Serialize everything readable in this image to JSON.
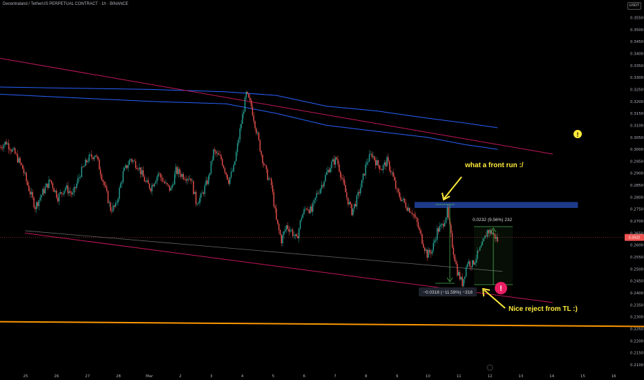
{
  "header": {
    "title": "Decentraland / TetherUS PERPETUAL CONTRACT · 1h · BINANCE"
  },
  "currency_button": "USDT",
  "price_label": "0.2632",
  "annotations": {
    "front_run": "what a front run :/",
    "reject": "Nice reject from TL :)",
    "range_up": "0.0232 (9.56%) 232",
    "range_down": "−0.0318 (−11.59%) −318"
  },
  "colors": {
    "up": "#26a69a",
    "down": "#ef5350",
    "trendline": "#c2185b",
    "support": "#ff9800",
    "ma": "#2962ff",
    "zone": "#1e3a8a",
    "annotation": "#ffeb3b",
    "range": "#4caf50"
  },
  "chart_data": {
    "type": "candlestick",
    "title": "Decentraland / TetherUS PERPETUAL CONTRACT · 1h · BINANCE",
    "y_range": [
      0.21,
      0.356
    ],
    "y_ticks": [
      "0.3550",
      "0.3500",
      "0.3450",
      "0.3400",
      "0.3350",
      "0.3300",
      "0.3250",
      "0.3200",
      "0.3150",
      "0.3100",
      "0.3050",
      "0.3000",
      "0.2950",
      "0.2900",
      "0.2850",
      "0.2800",
      "0.2750",
      "0.2700",
      "0.2650",
      "0.2600",
      "0.2550",
      "0.2500",
      "0.2450",
      "0.2400",
      "0.2350",
      "0.2300",
      "0.2250",
      "0.2200",
      "0.2150",
      "0.2100"
    ],
    "x_ticks": [
      "25",
      "26",
      "27",
      "28",
      "Mar",
      "2",
      "3",
      "4",
      "5",
      "6",
      "7",
      "8",
      "9",
      "10",
      "11",
      "12",
      "13",
      "14",
      "15",
      "16"
    ],
    "price_path": [
      [
        0,
        0.301
      ],
      [
        5,
        0.303
      ],
      [
        12,
        0.298
      ],
      [
        18,
        0.292
      ],
      [
        22,
        0.285
      ],
      [
        28,
        0.276
      ],
      [
        34,
        0.282
      ],
      [
        40,
        0.287
      ],
      [
        46,
        0.28
      ],
      [
        52,
        0.284
      ],
      [
        58,
        0.281
      ],
      [
        64,
        0.29
      ],
      [
        70,
        0.296
      ],
      [
        76,
        0.298
      ],
      [
        82,
        0.287
      ],
      [
        88,
        0.275
      ],
      [
        92,
        0.276
      ],
      [
        98,
        0.29
      ],
      [
        104,
        0.296
      ],
      [
        110,
        0.293
      ],
      [
        116,
        0.286
      ],
      [
        120,
        0.284
      ],
      [
        126,
        0.29
      ],
      [
        132,
        0.285
      ],
      [
        136,
        0.283
      ],
      [
        140,
        0.291
      ],
      [
        146,
        0.289
      ],
      [
        152,
        0.288
      ],
      [
        156,
        0.278
      ],
      [
        160,
        0.28
      ],
      [
        166,
        0.288
      ],
      [
        170,
        0.299
      ],
      [
        176,
        0.296
      ],
      [
        182,
        0.287
      ],
      [
        186,
        0.292
      ],
      [
        192,
        0.311
      ],
      [
        196,
        0.323
      ],
      [
        200,
        0.318
      ],
      [
        204,
        0.308
      ],
      [
        208,
        0.298
      ],
      [
        212,
        0.29
      ],
      [
        216,
        0.285
      ],
      [
        220,
        0.27
      ],
      [
        224,
        0.262
      ],
      [
        228,
        0.268
      ],
      [
        232,
        0.266
      ],
      [
        236,
        0.262
      ],
      [
        240,
        0.272
      ],
      [
        244,
        0.276
      ],
      [
        248,
        0.274
      ],
      [
        252,
        0.281
      ],
      [
        256,
        0.285
      ],
      [
        260,
        0.29
      ],
      [
        264,
        0.294
      ],
      [
        268,
        0.296
      ],
      [
        272,
        0.288
      ],
      [
        276,
        0.28
      ],
      [
        280,
        0.274
      ],
      [
        284,
        0.279
      ],
      [
        288,
        0.286
      ],
      [
        292,
        0.295
      ],
      [
        296,
        0.298
      ],
      [
        300,
        0.294
      ],
      [
        304,
        0.292
      ],
      [
        308,
        0.295
      ],
      [
        312,
        0.29
      ],
      [
        316,
        0.282
      ],
      [
        320,
        0.279
      ],
      [
        324,
        0.276
      ],
      [
        328,
        0.274
      ],
      [
        332,
        0.269
      ],
      [
        336,
        0.262
      ],
      [
        340,
        0.256
      ],
      [
        344,
        0.258
      ],
      [
        348,
        0.266
      ],
      [
        352,
        0.268
      ],
      [
        356,
        0.274
      ],
      [
        360,
        0.26
      ],
      [
        364,
        0.249
      ],
      [
        368,
        0.244
      ],
      [
        372,
        0.253
      ],
      [
        376,
        0.252
      ],
      [
        380,
        0.256
      ],
      [
        384,
        0.26
      ],
      [
        388,
        0.266
      ],
      [
        392,
        0.265
      ],
      [
        396,
        0.262
      ]
    ],
    "price_path_x_range": [
      0,
      396
    ],
    "moving_averages": [
      {
        "values": [
          [
            0,
            0.326
          ],
          [
            60,
            0.3255
          ],
          [
            120,
            0.325
          ],
          [
            180,
            0.324
          ],
          [
            220,
            0.3225
          ],
          [
            260,
            0.318
          ],
          [
            300,
            0.316
          ],
          [
            340,
            0.313
          ],
          [
            370,
            0.311
          ],
          [
            396,
            0.309
          ]
        ]
      },
      {
        "values": [
          [
            0,
            0.323
          ],
          [
            60,
            0.3215
          ],
          [
            120,
            0.32
          ],
          [
            180,
            0.319
          ],
          [
            220,
            0.315
          ],
          [
            260,
            0.31
          ],
          [
            300,
            0.3075
          ],
          [
            340,
            0.305
          ],
          [
            370,
            0.302
          ],
          [
            396,
            0.3
          ]
        ]
      }
    ],
    "trendlines": [
      {
        "kind": "descending-resistance",
        "from": [
          0,
          0.338
        ],
        "to": [
          440,
          0.298
        ]
      },
      {
        "kind": "descending-support",
        "from": [
          20,
          0.265
        ],
        "to": [
          440,
          0.236
        ]
      },
      {
        "kind": "horizontal-support",
        "from": [
          0,
          0.228
        ],
        "to": [
          520,
          0.226
        ]
      },
      {
        "kind": "inner-channel",
        "from": [
          20,
          0.266
        ],
        "to": [
          400,
          0.249
        ]
      }
    ],
    "zone": {
      "from_x": 330,
      "to_x": 460,
      "y_top": 0.278,
      "y_bottom": 0.2755
    }
  }
}
